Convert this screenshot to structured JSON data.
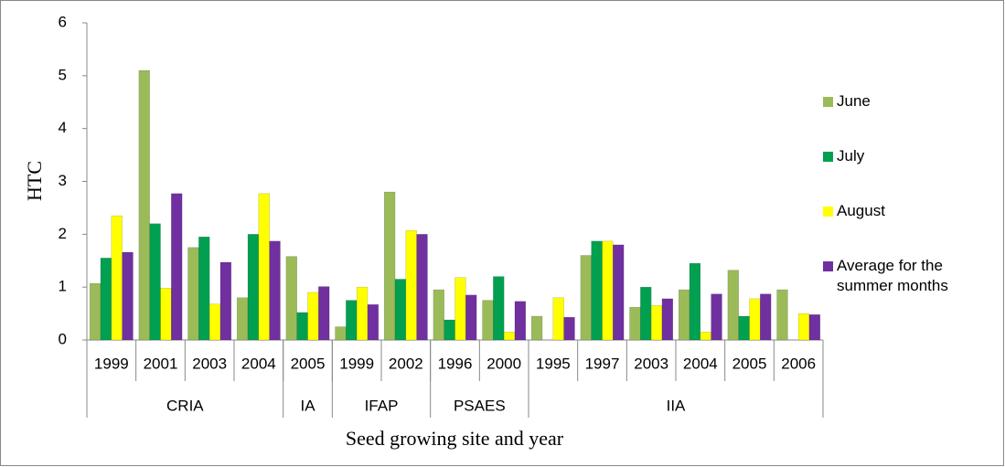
{
  "chart_data": {
    "type": "bar",
    "y_label": "HTC",
    "x_label": "Seed growing site and year",
    "groups": [
      {
        "label": "CRIA",
        "categories": [
          "1999",
          "2001",
          "2003",
          "2004"
        ]
      },
      {
        "label": "IA",
        "categories": [
          "2005"
        ]
      },
      {
        "label": "IFAP",
        "categories": [
          "1999",
          "2002"
        ]
      },
      {
        "label": "PSAES",
        "categories": [
          "1996",
          "2000"
        ]
      },
      {
        "label": "IIA",
        "categories": [
          "1995",
          "1997",
          "2003",
          "2004",
          "2005",
          "2006"
        ]
      }
    ],
    "series": [
      {
        "name": "June",
        "color": "#9bbb59",
        "values": [
          1.07,
          5.1,
          1.75,
          0.8,
          1.58,
          0.25,
          2.8,
          0.95,
          0.75,
          0.45,
          1.6,
          0.62,
          0.95,
          1.32,
          0.95
        ]
      },
      {
        "name": "July",
        "color": "#00a050",
        "values": [
          1.55,
          2.2,
          1.95,
          2.0,
          0.52,
          0.75,
          1.15,
          0.38,
          1.2,
          null,
          1.87,
          1.0,
          1.45,
          0.45,
          null
        ]
      },
      {
        "name": "August",
        "color": "#ffff00",
        "values": [
          2.35,
          0.98,
          0.68,
          2.77,
          0.9,
          1.0,
          2.07,
          1.18,
          0.15,
          0.8,
          1.87,
          0.65,
          0.15,
          0.78,
          0.5
        ]
      },
      {
        "name": "Average for the summer months",
        "color": "#7030a0",
        "values": [
          1.66,
          2.77,
          1.47,
          1.87,
          1.01,
          0.67,
          2.0,
          0.85,
          0.73,
          0.43,
          1.8,
          0.78,
          0.87,
          0.87,
          0.48
        ]
      }
    ],
    "ylim": [
      0,
      6
    ],
    "yticks": [
      0,
      1,
      2,
      3,
      4,
      5,
      6
    ],
    "legend": "right"
  }
}
